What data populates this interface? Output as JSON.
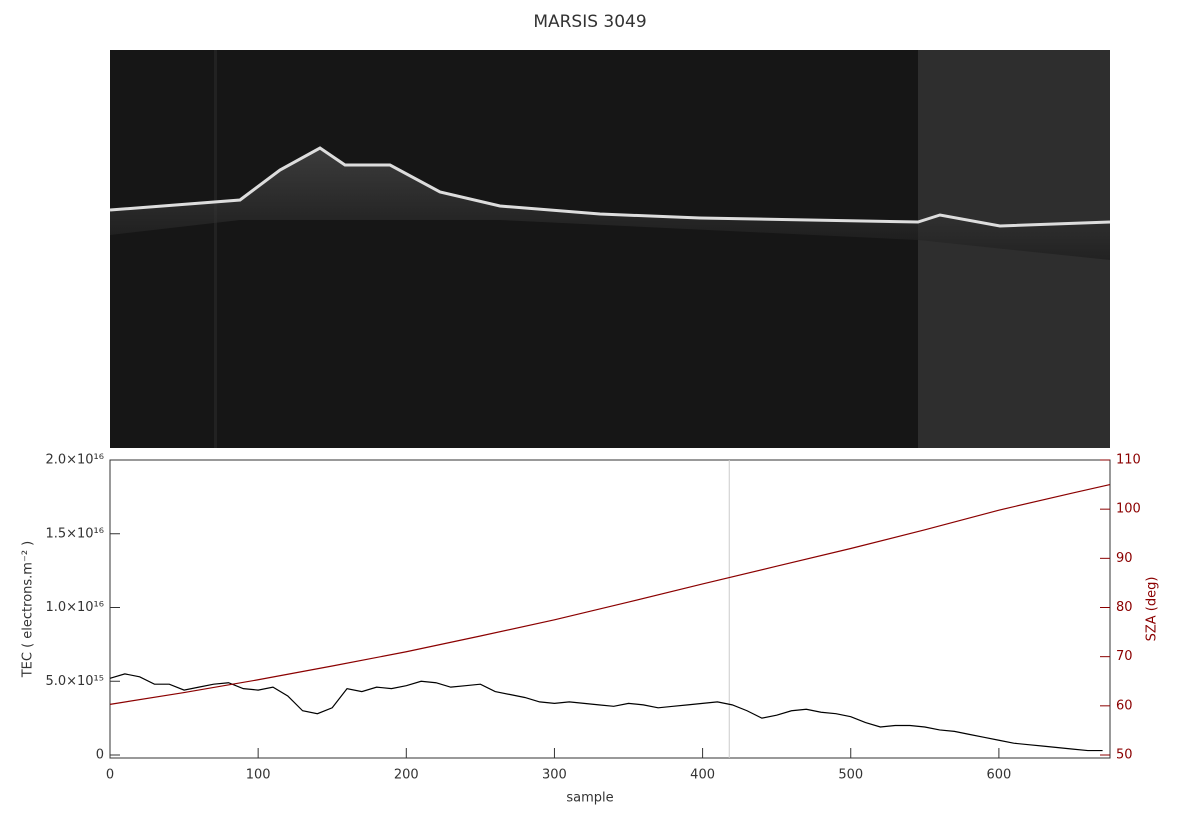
{
  "chart_data": {
    "type": "line",
    "title": "MARSIS 3049",
    "x_label": "sample",
    "y_label": "TEC ( electrons.m⁻² )",
    "y2_label": "SZA (deg)",
    "xlim": [
      0,
      675
    ],
    "xticks": [
      0,
      100,
      200,
      300,
      400,
      500,
      600
    ],
    "ylim": [
      0,
      2e+16
    ],
    "yticks": [
      {
        "value": 0,
        "label": "0"
      },
      {
        "value": 5000000000000000.0,
        "label": "5.0×10¹⁵"
      },
      {
        "value": 1e+16,
        "label": "1.0×10¹⁶"
      },
      {
        "value": 1.5e+16,
        "label": "1.5×10¹⁶"
      },
      {
        "value": 2e+16,
        "label": "2.0×10¹⁶"
      }
    ],
    "y2lim": [
      50,
      110
    ],
    "y2ticks": [
      50,
      60,
      70,
      80,
      90,
      100,
      110
    ],
    "y2_color": "#8b0000",
    "vline": 418,
    "series": [
      {
        "color": "#000000",
        "x": [
          0,
          10,
          20,
          30,
          40,
          50,
          60,
          70,
          80,
          90,
          100,
          110,
          120,
          130,
          140,
          150,
          160,
          170,
          180,
          190,
          200,
          210,
          220,
          230,
          240,
          250,
          260,
          270,
          280,
          290,
          300,
          310,
          320,
          330,
          340,
          350,
          360,
          370,
          380,
          390,
          400,
          410,
          420,
          430,
          440,
          450,
          460,
          470,
          480,
          490,
          500,
          510,
          520,
          530,
          540,
          550,
          560,
          570,
          580,
          590,
          600,
          610,
          620,
          630,
          640,
          650,
          660,
          670
        ],
        "values": [
          5200000000000000.0,
          5500000000000000.0,
          5300000000000000.0,
          4800000000000000.0,
          4800000000000000.0,
          4400000000000000.0,
          4600000000000000.0,
          4800000000000000.0,
          4900000000000000.0,
          4500000000000000.0,
          4400000000000000.0,
          4600000000000000.0,
          4000000000000000.0,
          3000000000000000.0,
          2800000000000000.0,
          3200000000000000.0,
          4500000000000000.0,
          4300000000000000.0,
          4600000000000000.0,
          4500000000000000.0,
          4700000000000000.0,
          5000000000000000.0,
          4900000000000000.0,
          4600000000000000.0,
          4700000000000000.0,
          4800000000000000.0,
          4300000000000000.0,
          4100000000000000.0,
          3900000000000000.0,
          3600000000000000.0,
          3500000000000000.0,
          3600000000000000.0,
          3500000000000000.0,
          3400000000000000.0,
          3300000000000000.0,
          3500000000000000.0,
          3400000000000000.0,
          3200000000000000.0,
          3300000000000000.0,
          3400000000000000.0,
          3500000000000000.0,
          3600000000000000.0,
          3400000000000000.0,
          3000000000000000.0,
          2500000000000000.0,
          2700000000000000.0,
          3000000000000000.0,
          3100000000000000.0,
          2900000000000000.0,
          2800000000000000.0,
          2600000000000000.0,
          2200000000000000.0,
          1900000000000000.0,
          2000000000000000.0,
          2000000000000000.0,
          1900000000000000.0,
          1700000000000000.0,
          1600000000000000.0,
          1400000000000000.0,
          1200000000000000.0,
          1000000000000000.0,
          800000000000000.0,
          700000000000000.0,
          600000000000000.0,
          500000000000000.0,
          400000000000000.0,
          300000000000000.0,
          300000000000000.0
        ]
      },
      {
        "color": "#8b0000",
        "axis": "y2",
        "x": [
          0,
          50,
          100,
          150,
          200,
          250,
          300,
          350,
          400,
          450,
          500,
          550,
          600,
          650,
          675
        ],
        "values": [
          60.3,
          62.7,
          65.3,
          68.1,
          71,
          74.2,
          77.5,
          81.1,
          84.8,
          88.4,
          92,
          95.8,
          99.8,
          103.3,
          105
        ]
      }
    ]
  }
}
